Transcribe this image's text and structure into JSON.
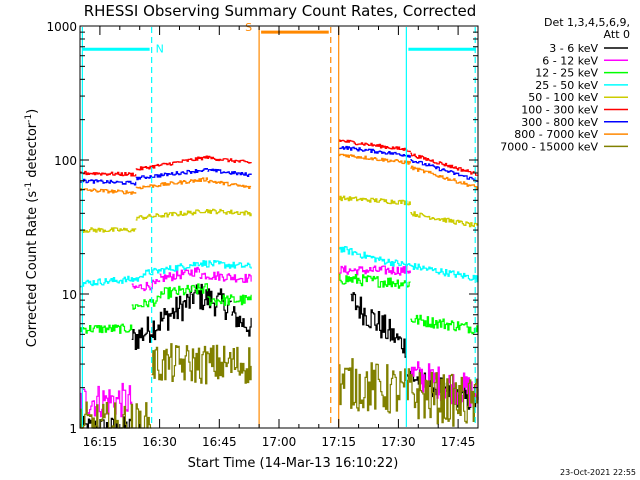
{
  "chart_data": {
    "type": "line",
    "title": "RHESSI Observing Summary Count Rates, Corrected",
    "xlabel": "Start Time (14-Mar-13 16:10:22)",
    "ylabel_main": "Corrected Count Rate (s",
    "ylabel_sup1": "-1",
    "ylabel_mid": " detector",
    "ylabel_sup2": "-1",
    "ylabel_end": ")",
    "y_scale": "log",
    "ylim": [
      1,
      1000
    ],
    "xlim_min": [
      16.0,
      18.5
    ],
    "x_ticks": [
      {
        "label": "16:15",
        "t": 5
      },
      {
        "label": "16:30",
        "t": 20
      },
      {
        "label": "16:45",
        "t": 35
      },
      {
        "label": "17:00",
        "t": 50
      },
      {
        "label": "17:15",
        "t": 65
      },
      {
        "label": "17:30",
        "t": 80
      },
      {
        "label": "17:45",
        "t": 95
      }
    ],
    "x_range_minutes_after_1610": [
      0,
      100
    ],
    "y_ticks": [
      {
        "label": "1",
        "v": 1
      },
      {
        "label": "10",
        "v": 10
      },
      {
        "label": "100",
        "v": 100
      },
      {
        "label": "1000",
        "v": 1000
      }
    ],
    "legend": {
      "header1": "Det 1,3,4,5,6,9,",
      "header2": "Att 0",
      "items": [
        {
          "label": "3 - 6 keV",
          "color": "#000000"
        },
        {
          "label": "6 - 12 keV",
          "color": "#ff00ff"
        },
        {
          "label": "12 - 25 keV",
          "color": "#00ff00"
        },
        {
          "label": "25 - 50 keV",
          "color": "#00ffff"
        },
        {
          "label": "50 - 100 keV",
          "color": "#cccc00"
        },
        {
          "label": "100 - 300 keV",
          "color": "#ff0000"
        },
        {
          "label": "300 - 800 keV",
          "color": "#0000ff"
        },
        {
          "label": "800 - 7000 keV",
          "color": "#ff8800"
        },
        {
          "label": "7000 - 15000 keV",
          "color": "#808000"
        }
      ]
    },
    "series": [
      {
        "name": "3 - 6 keV",
        "color": "#000000",
        "segments": [
          {
            "t0": 0,
            "t1": 13,
            "start": 1.0,
            "end": 1.0,
            "noise": 0.2
          },
          {
            "t0": 13,
            "t1": 28,
            "start": 4.5,
            "end": 9,
            "noise": 0.25
          },
          {
            "t0": 28,
            "t1": 38,
            "start": 10,
            "end": 8,
            "noise": 0.25
          },
          {
            "t0": 38,
            "t1": 43,
            "start": 7,
            "end": 5.5,
            "noise": 0.2
          },
          {
            "t0": 68,
            "t1": 78,
            "start": 9,
            "end": 5,
            "noise": 0.25
          },
          {
            "t0": 78,
            "t1": 82,
            "start": 5,
            "end": 4,
            "noise": 0.2
          },
          {
            "t0": 82,
            "t1": 100,
            "start": 2.5,
            "end": 1.5,
            "noise": 0.2
          }
        ]
      },
      {
        "name": "6 - 12 keV",
        "color": "#ff00ff",
        "segments": [
          {
            "t0": 0,
            "t1": 13,
            "start": 1.6,
            "end": 1.6,
            "noise": 0.3
          },
          {
            "t0": 13,
            "t1": 20,
            "start": 11,
            "end": 12,
            "noise": 0.08
          },
          {
            "t0": 20,
            "t1": 30,
            "start": 13,
            "end": 15,
            "noise": 0.08
          },
          {
            "t0": 30,
            "t1": 43,
            "start": 14,
            "end": 13,
            "noise": 0.08
          },
          {
            "t0": 65,
            "t1": 83,
            "start": 15,
            "end": 15,
            "noise": 0.08
          },
          {
            "t0": 83,
            "t1": 100,
            "start": 2.5,
            "end": 1.8,
            "noise": 0.3
          }
        ]
      },
      {
        "name": "12 - 25 keV",
        "color": "#00ff00",
        "segments": [
          {
            "t0": 0,
            "t1": 13,
            "start": 5.5,
            "end": 5.5,
            "noise": 0.08
          },
          {
            "t0": 13,
            "t1": 20,
            "start": 8,
            "end": 9,
            "noise": 0.08
          },
          {
            "t0": 20,
            "t1": 32,
            "start": 10,
            "end": 11,
            "noise": 0.1
          },
          {
            "t0": 32,
            "t1": 43,
            "start": 9,
            "end": 9,
            "noise": 0.1
          },
          {
            "t0": 65,
            "t1": 83,
            "start": 13,
            "end": 12,
            "noise": 0.1
          },
          {
            "t0": 83,
            "t1": 100,
            "start": 6.5,
            "end": 5.5,
            "noise": 0.1
          }
        ]
      },
      {
        "name": "25 - 50 keV",
        "color": "#00ffff",
        "segments": [
          {
            "t0": 0,
            "t1": 15,
            "start": 12,
            "end": 13,
            "noise": 0.06
          },
          {
            "t0": 15,
            "t1": 30,
            "start": 14,
            "end": 17,
            "noise": 0.06
          },
          {
            "t0": 30,
            "t1": 43,
            "start": 17,
            "end": 16,
            "noise": 0.06
          },
          {
            "t0": 65,
            "t1": 75,
            "start": 22,
            "end": 18,
            "noise": 0.06
          },
          {
            "t0": 75,
            "t1": 100,
            "start": 18,
            "end": 13,
            "noise": 0.06
          }
        ]
      },
      {
        "name": "50 - 100 keV",
        "color": "#cccc00",
        "segments": [
          {
            "t0": 0,
            "t1": 14,
            "start": 30,
            "end": 30,
            "noise": 0.04
          },
          {
            "t0": 14,
            "t1": 30,
            "start": 37,
            "end": 41,
            "noise": 0.04
          },
          {
            "t0": 30,
            "t1": 43,
            "start": 42,
            "end": 40,
            "noise": 0.04
          },
          {
            "t0": 65,
            "t1": 83,
            "start": 52,
            "end": 48,
            "noise": 0.04
          },
          {
            "t0": 83,
            "t1": 100,
            "start": 40,
            "end": 32,
            "noise": 0.04
          }
        ]
      },
      {
        "name": "100 - 300 keV",
        "color": "#ff0000",
        "segments": [
          {
            "t0": 0,
            "t1": 14,
            "start": 80,
            "end": 78,
            "noise": 0.03
          },
          {
            "t0": 14,
            "t1": 32,
            "start": 85,
            "end": 105,
            "noise": 0.03
          },
          {
            "t0": 32,
            "t1": 43,
            "start": 104,
            "end": 95,
            "noise": 0.03
          },
          {
            "t0": 65,
            "t1": 83,
            "start": 140,
            "end": 118,
            "noise": 0.03
          },
          {
            "t0": 83,
            "t1": 100,
            "start": 110,
            "end": 78,
            "noise": 0.03
          }
        ]
      },
      {
        "name": "300 - 800 keV",
        "color": "#0000ff",
        "segments": [
          {
            "t0": 0,
            "t1": 14,
            "start": 70,
            "end": 67,
            "noise": 0.03
          },
          {
            "t0": 14,
            "t1": 32,
            "start": 73,
            "end": 85,
            "noise": 0.03
          },
          {
            "t0": 32,
            "t1": 43,
            "start": 84,
            "end": 77,
            "noise": 0.03
          },
          {
            "t0": 65,
            "t1": 83,
            "start": 125,
            "end": 108,
            "noise": 0.03
          },
          {
            "t0": 83,
            "t1": 100,
            "start": 100,
            "end": 70,
            "noise": 0.03
          }
        ]
      },
      {
        "name": "800 - 7000 keV",
        "color": "#ff8800",
        "segments": [
          {
            "t0": 0,
            "t1": 14,
            "start": 60,
            "end": 57,
            "noise": 0.03
          },
          {
            "t0": 14,
            "t1": 32,
            "start": 62,
            "end": 72,
            "noise": 0.03
          },
          {
            "t0": 32,
            "t1": 43,
            "start": 70,
            "end": 62,
            "noise": 0.03
          },
          {
            "t0": 65,
            "t1": 83,
            "start": 110,
            "end": 95,
            "noise": 0.03
          },
          {
            "t0": 83,
            "t1": 100,
            "start": 88,
            "end": 62,
            "noise": 0.03
          }
        ]
      },
      {
        "name": "7000 - 15000 keV",
        "color": "#808000",
        "segments": [
          {
            "t0": 0,
            "t1": 18,
            "start": 1.0,
            "end": 1.0,
            "noise": 0.45
          },
          {
            "t0": 18,
            "t1": 43,
            "start": 3,
            "end": 3,
            "noise": 0.35
          },
          {
            "t0": 65,
            "t1": 100,
            "start": 2.2,
            "end": 1.5,
            "noise": 0.45
          }
        ]
      }
    ],
    "markers": [
      {
        "label": "N",
        "color": "#00ffff",
        "t0": 0,
        "t1": 18,
        "value": 670
      },
      {
        "label": "S",
        "color": "#ff8800",
        "t0": 45,
        "t1": 63,
        "value": 900
      },
      {
        "label": "",
        "color": "#00ffff",
        "t0": 82,
        "t1": 100,
        "value": 670
      }
    ],
    "vlines": [
      {
        "t": 0.6,
        "color": "#00ffff",
        "dashed": false
      },
      {
        "t": 18,
        "color": "#00ffff",
        "dashed": true
      },
      {
        "t": 45,
        "color": "#ff8800",
        "dashed": false
      },
      {
        "t": 63,
        "color": "#ff8800",
        "dashed": true
      },
      {
        "t": 65,
        "color": "#ff8800",
        "dashed": false
      },
      {
        "t": 82,
        "color": "#00ffff",
        "dashed": false
      },
      {
        "t": 99.3,
        "color": "#00ffff",
        "dashed": true
      }
    ]
  },
  "footer_timestamp": "23-Oct-2021 22:55"
}
